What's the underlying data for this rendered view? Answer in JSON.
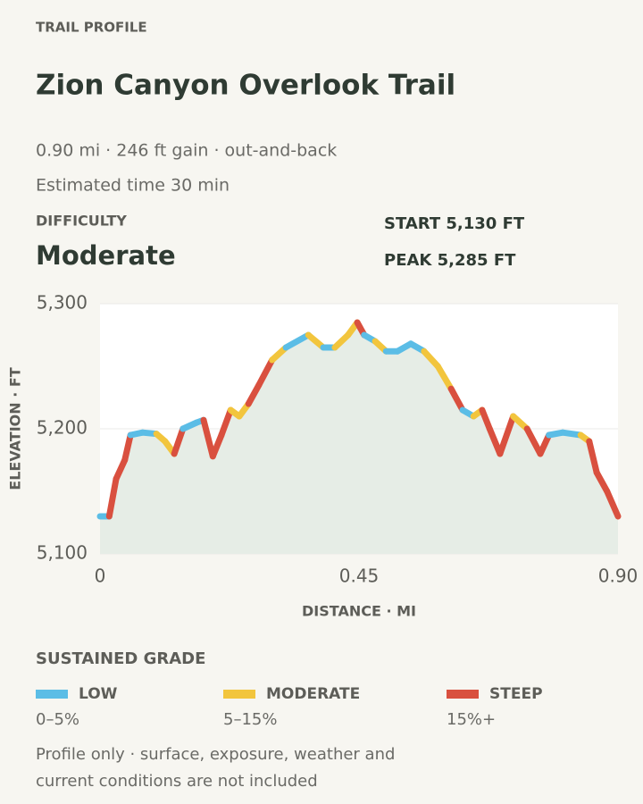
{
  "eyebrow": "TRAIL PROFILE",
  "title": "Zion Canyon Overlook Trail",
  "meta": "0.90 mi · 246 ft gain · out-and-back",
  "time": "Estimated time 30 min",
  "difficulty_label": "DIFFICULTY",
  "difficulty": "Moderate",
  "start": "START 5,130 FT",
  "peak": "PEAK 5,285 FT",
  "chart_data": {
    "type": "line",
    "x_label": "DISTANCE · MI",
    "y_label": "ELEVATION · FT",
    "x": [
      0,
      0.016,
      0.028,
      0.043,
      0.053,
      0.074,
      0.098,
      0.113,
      0.129,
      0.144,
      0.168,
      0.18,
      0.196,
      0.211,
      0.227,
      0.242,
      0.258,
      0.276,
      0.299,
      0.323,
      0.362,
      0.388,
      0.408,
      0.431,
      0.447,
      0.459,
      0.478,
      0.497,
      0.517,
      0.54,
      0.563,
      0.587,
      0.61,
      0.63,
      0.649,
      0.664,
      0.677,
      0.695,
      0.718,
      0.742,
      0.765,
      0.78,
      0.804,
      0.835,
      0.85,
      0.863,
      0.881,
      0.9
    ],
    "series": [
      {
        "values": [
          5130,
          5130,
          5160,
          5175,
          5195,
          5197,
          5196,
          5190,
          5180,
          5200,
          5205,
          5207,
          5178,
          5195,
          5215,
          5210,
          5220,
          5235,
          5255,
          5265,
          5275,
          5265,
          5265,
          5275,
          5285,
          5275,
          5270,
          5262,
          5262,
          5268,
          5262,
          5250,
          5232,
          5215,
          5210,
          5215,
          5200,
          5180,
          5210,
          5200,
          5180,
          5195,
          5197,
          5195,
          5190,
          5165,
          5150,
          5130
        ],
        "color": "#e6ede6"
      }
    ],
    "xlim": [
      0,
      0.9
    ],
    "xticks": [
      0,
      0.45,
      {
        "value": 0.9,
        "label": "0.90"
      }
    ],
    "ylim": [
      5100,
      5300
    ],
    "yticks": [
      {
        "value": 5100,
        "label": "5,100"
      },
      {
        "value": 5200,
        "label": "5,200"
      },
      {
        "value": 5300,
        "label": "5,300"
      }
    ],
    "grid": true
  },
  "legend": {
    "title": "SUSTAINED GRADE",
    "items": [
      {
        "name": "LOW",
        "range": "0–5%",
        "min": 0,
        "max": 5,
        "color": "#5bbde6"
      },
      {
        "name": "MODERATE",
        "range": "5–15%",
        "min": 5,
        "max": 15,
        "color": "#f2c53d"
      },
      {
        "name": "STEEP",
        "range": "15%+",
        "min": 15,
        "color": "#d9503f"
      }
    ]
  },
  "footnote": [
    "Profile only · surface, exposure, weather and",
    "current conditions are not included"
  ]
}
